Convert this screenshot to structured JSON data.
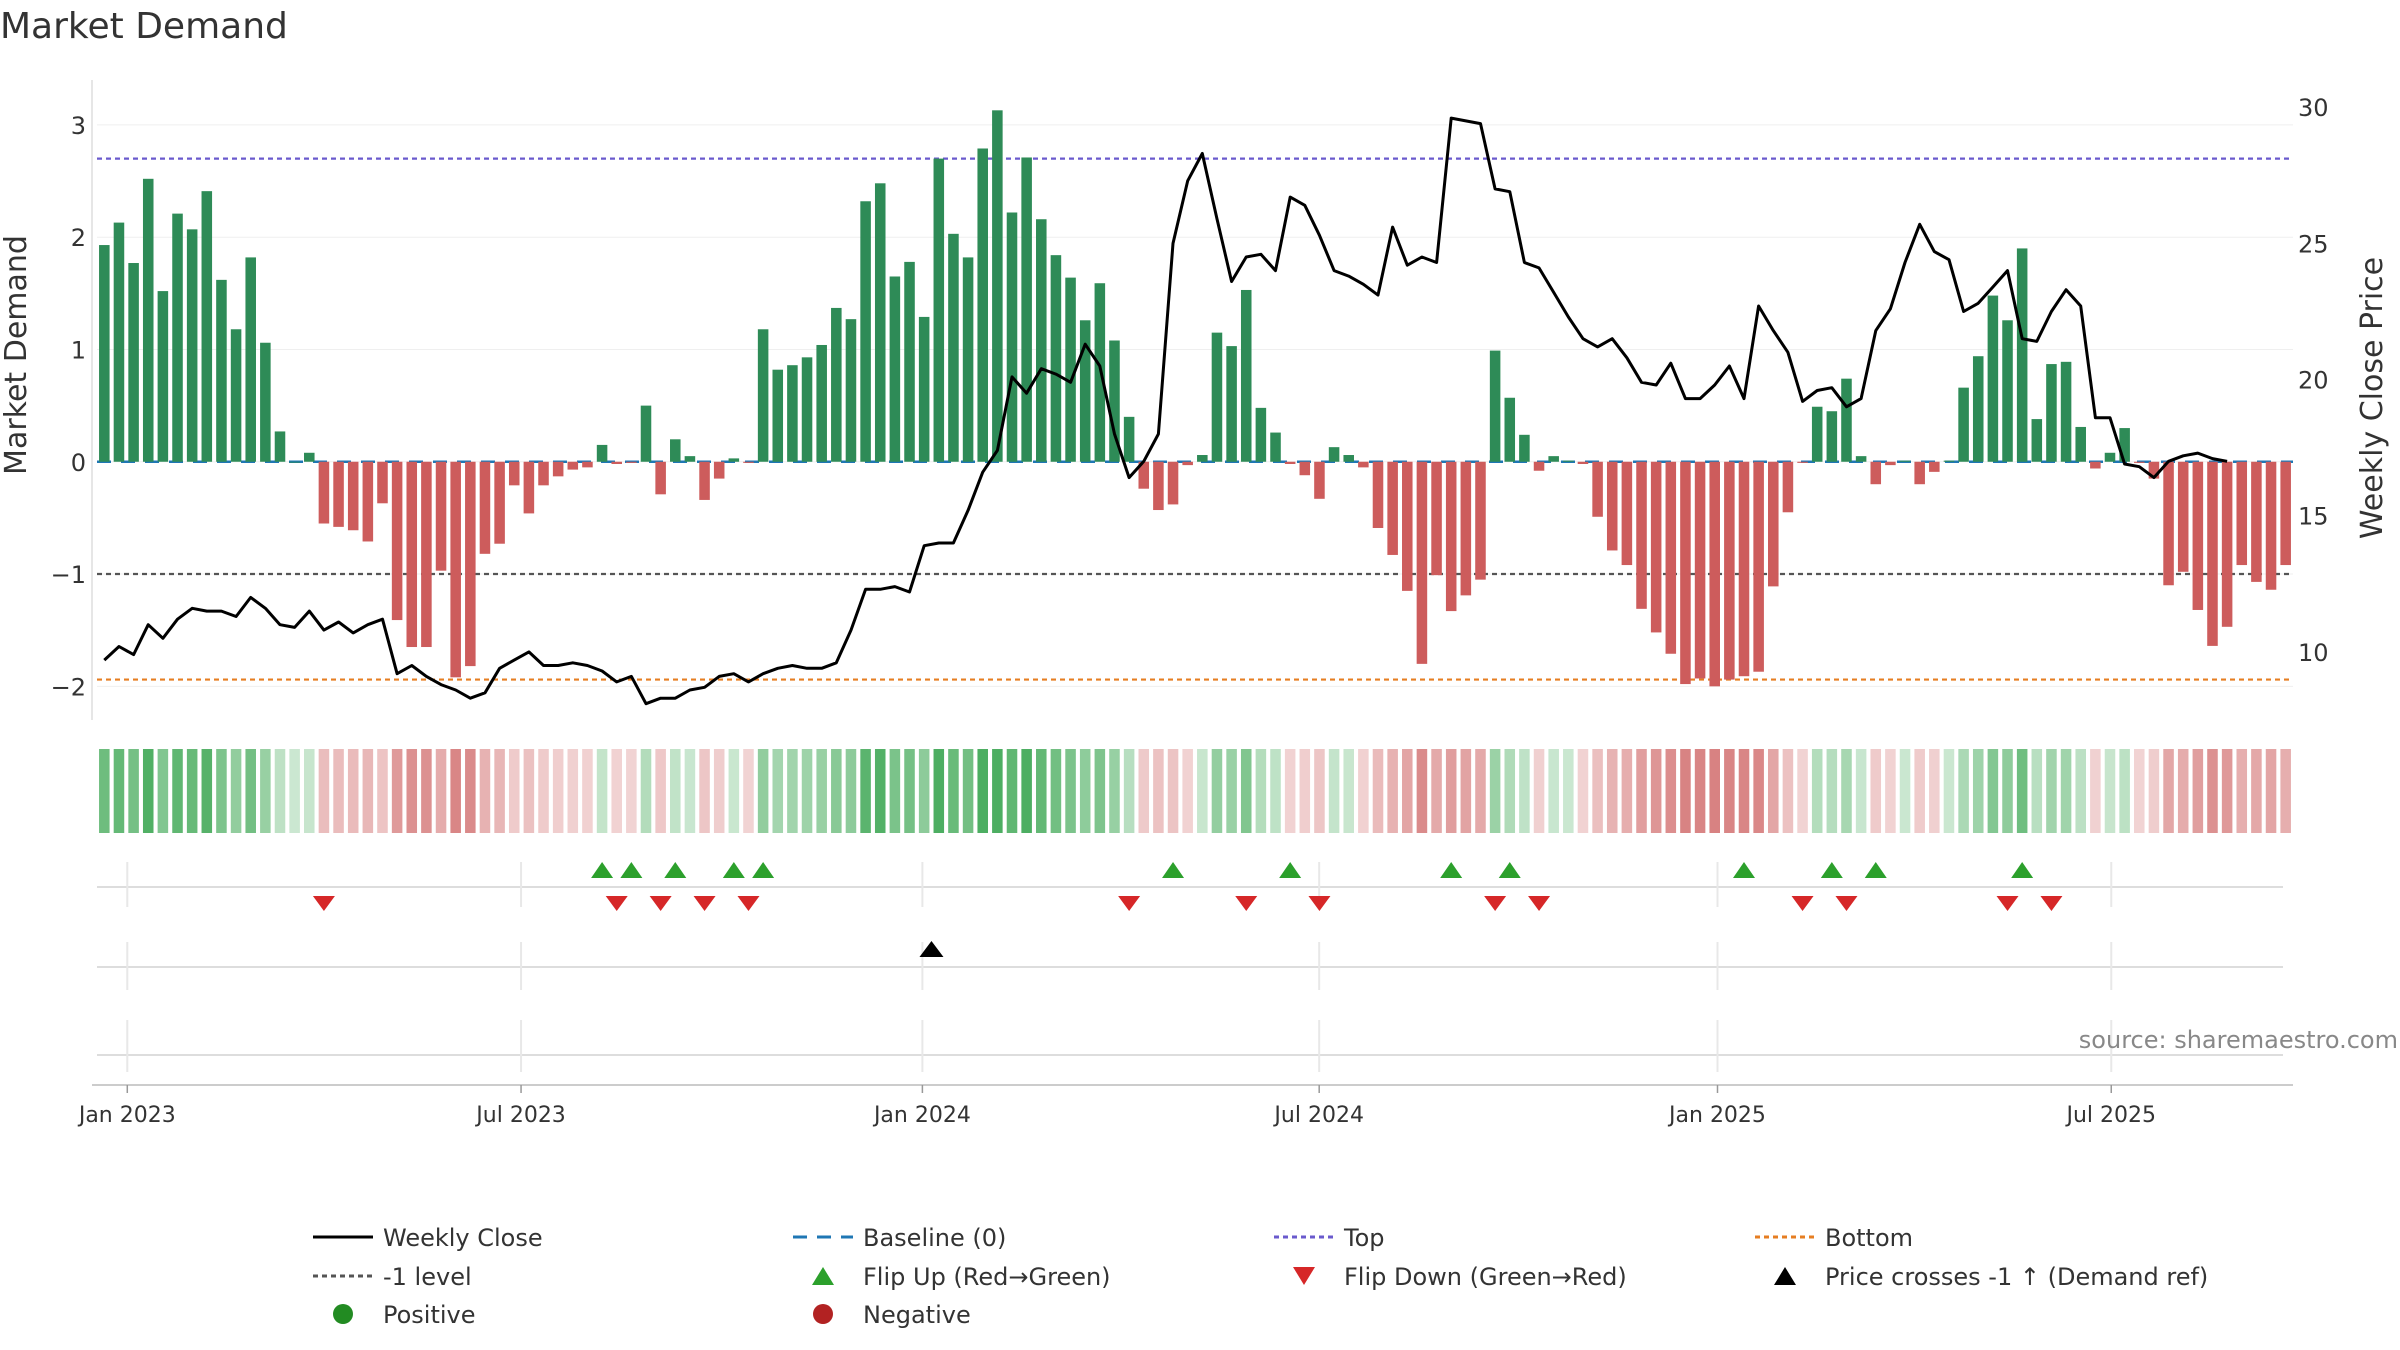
{
  "chart_data": {
    "type": "bar",
    "title": "Market Demand",
    "ylabel": "Market Demand",
    "y2label": "Weekly Close Price",
    "ylim": [
      -2.3,
      3.4
    ],
    "y2lim": [
      7.5,
      31
    ],
    "yticks": [
      3,
      2,
      1,
      0,
      -1,
      -2
    ],
    "ytick_labels": [
      "3",
      "2",
      "1",
      "0",
      "−1",
      "−2"
    ],
    "y2ticks": [
      30,
      25,
      20,
      15,
      10
    ],
    "y2tick_labels": [
      "30",
      "25",
      "20",
      "15",
      "10"
    ],
    "x_start_week": 0,
    "x_end_week": 145,
    "xticks": [
      {
        "label": "Jan 2023",
        "week": 2
      },
      {
        "label": "Jul 2023",
        "week": 28
      },
      {
        "label": "Jan 2024",
        "week": 54.5
      },
      {
        "label": "Jul 2024",
        "week": 80.7
      },
      {
        "label": "Jan 2025",
        "week": 107
      },
      {
        "label": "Jul 2025",
        "week": 133
      }
    ],
    "demand": [
      1.93,
      2.13,
      1.77,
      2.52,
      1.52,
      2.21,
      2.07,
      2.41,
      1.62,
      1.18,
      1.82,
      1.06,
      0.27,
      0.0,
      0.08,
      -0.55,
      -0.58,
      -0.61,
      -0.71,
      -0.37,
      -1.41,
      -1.65,
      -1.65,
      -0.97,
      -1.92,
      -1.82,
      -0.82,
      -0.73,
      -0.21,
      -0.46,
      -0.21,
      -0.13,
      -0.07,
      -0.05,
      0.15,
      -0.02,
      -0.01,
      0.5,
      -0.29,
      0.2,
      0.05,
      -0.34,
      -0.15,
      0.03,
      -0.01,
      1.18,
      0.82,
      0.86,
      0.93,
      1.04,
      1.37,
      1.27,
      2.32,
      2.48,
      1.65,
      1.78,
      1.29,
      2.7,
      2.03,
      1.82,
      2.79,
      3.13,
      2.22,
      2.71,
      2.16,
      1.84,
      1.64,
      1.26,
      1.59,
      1.08,
      0.4,
      -0.24,
      -0.43,
      -0.38,
      -0.03,
      0.06,
      1.15,
      1.03,
      1.53,
      0.48,
      0.26,
      -0.02,
      -0.12,
      -0.33,
      0.13,
      0.06,
      -0.05,
      -0.59,
      -0.83,
      -1.15,
      -1.8,
      -1.01,
      -1.33,
      -1.19,
      -1.05,
      0.99,
      0.57,
      0.24,
      -0.08,
      0.05,
      0.01,
      -0.02,
      -0.49,
      -0.79,
      -0.92,
      -1.31,
      -1.52,
      -1.71,
      -1.98,
      -1.93,
      -2.0,
      -1.94,
      -1.91,
      -1.87,
      -1.11,
      -0.45,
      -0.01,
      0.49,
      0.45,
      0.74,
      0.05,
      -0.2,
      -0.03,
      0.01,
      -0.2,
      -0.09,
      0.01,
      0.66,
      0.94,
      1.48,
      1.26,
      1.9,
      0.38,
      0.87,
      0.89,
      0.31,
      -0.06,
      0.08,
      0.3,
      -0.01,
      -0.15,
      -1.1,
      -0.98,
      -1.32,
      -1.64,
      -1.47,
      -0.92,
      -1.07,
      -1.14,
      -0.92
    ],
    "weekly_close": [
      9.7,
      10.2,
      9.9,
      11.0,
      10.5,
      11.2,
      11.6,
      11.5,
      11.5,
      11.3,
      12.0,
      11.6,
      11.0,
      10.9,
      11.5,
      10.8,
      11.1,
      10.7,
      11.0,
      11.2,
      9.2,
      9.5,
      9.1,
      8.8,
      8.6,
      8.3,
      8.5,
      9.4,
      9.7,
      10.0,
      9.5,
      9.5,
      9.6,
      9.5,
      9.3,
      8.9,
      9.1,
      8.1,
      8.3,
      8.3,
      8.6,
      8.7,
      9.1,
      9.2,
      8.9,
      9.2,
      9.4,
      9.5,
      9.4,
      9.4,
      9.6,
      10.8,
      12.3,
      12.3,
      12.4,
      12.2,
      13.9,
      14.0,
      14.0,
      15.2,
      16.6,
      17.4,
      20.1,
      19.5,
      20.4,
      20.2,
      19.9,
      21.3,
      20.5,
      18.0,
      16.4,
      17.0,
      18.0,
      25.0,
      27.3,
      28.3,
      25.9,
      23.6,
      24.5,
      24.6,
      24.0,
      26.7,
      26.4,
      25.3,
      24.0,
      23.8,
      23.5,
      23.1,
      25.6,
      24.2,
      24.5,
      24.3,
      29.6,
      29.5,
      29.4,
      27.0,
      26.9,
      24.3,
      24.1,
      23.2,
      22.3,
      21.5,
      21.2,
      21.5,
      20.8,
      19.9,
      19.8,
      20.6,
      19.3,
      19.3,
      19.8,
      20.5,
      19.3,
      22.7,
      21.8,
      21.0,
      19.2,
      19.6,
      19.7,
      19.0,
      19.3,
      21.8,
      22.6,
      24.3,
      25.7,
      24.7,
      24.4,
      22.5,
      22.8,
      23.4,
      24.0,
      21.5,
      21.4,
      22.5,
      23.3,
      22.7,
      18.6,
      18.6,
      16.9,
      16.8,
      16.4,
      17.0,
      17.2,
      17.3,
      17.1,
      17.0
    ],
    "flip_up_weeks": [
      34,
      36,
      39,
      43,
      45,
      73,
      81,
      92,
      96,
      112,
      118,
      121,
      131
    ],
    "flip_down_weeks": [
      15,
      35,
      38,
      41,
      44,
      70,
      78,
      83,
      95,
      98,
      116,
      119,
      130,
      133
    ],
    "price_cross_weeks": [
      56.5
    ],
    "top_level": 2.7,
    "bottom_level": -1.94,
    "neg_one_level": -1,
    "baseline_level": 0,
    "colors": {
      "positive_bar": "#2e8b57",
      "negative_bar": "#cd5c5c",
      "close_line": "#000000",
      "top_line": "#6a5acd",
      "bottom_line": "#e67e22",
      "neg_one_line": "#555555",
      "baseline": "#1f77b4",
      "flip_up": "#2ca02c",
      "flip_down": "#d62728",
      "cross": "#000000",
      "positive_dot": "#228b22",
      "negative_dot": "#b22222"
    },
    "source": "source: sharemaestro.com",
    "legend": [
      {
        "label": "Weekly Close",
        "kind": "line",
        "color": "#000000"
      },
      {
        "label": "Baseline (0)",
        "kind": "dash",
        "color": "#1f77b4"
      },
      {
        "label": "Top",
        "kind": "dot",
        "color": "#6a5acd"
      },
      {
        "label": "Bottom",
        "kind": "dot",
        "color": "#e67e22"
      },
      {
        "label": "-1 level",
        "kind": "dot",
        "color": "#555555"
      },
      {
        "label": "Flip Up (Red→Green)",
        "kind": "tri-up",
        "color": "#2ca02c"
      },
      {
        "label": "Flip Down (Green→Red)",
        "kind": "tri-down",
        "color": "#d62728"
      },
      {
        "label": "Price crosses -1 ↑ (Demand ref)",
        "kind": "tri-up",
        "color": "#000000"
      },
      {
        "label": "Positive",
        "kind": "circle",
        "color": "#228b22"
      },
      {
        "label": "Negative",
        "kind": "circle",
        "color": "#b22222"
      }
    ]
  }
}
